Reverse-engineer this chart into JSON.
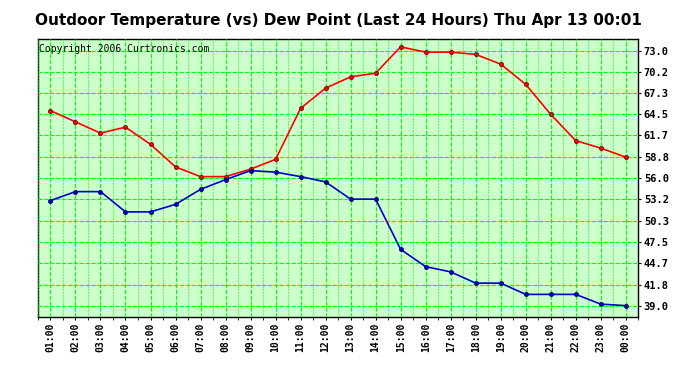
{
  "title": "Outdoor Temperature (vs) Dew Point (Last 24 Hours) Thu Apr 13 00:01",
  "copyright": "Copyright 2006 Curtronics.com",
  "x_labels": [
    "01:00",
    "02:00",
    "03:00",
    "04:00",
    "05:00",
    "06:00",
    "07:00",
    "08:00",
    "09:00",
    "10:00",
    "11:00",
    "12:00",
    "13:00",
    "14:00",
    "15:00",
    "16:00",
    "17:00",
    "18:00",
    "19:00",
    "20:00",
    "21:00",
    "22:00",
    "23:00",
    "00:00"
  ],
  "temp_red": [
    65.0,
    63.5,
    62.0,
    62.8,
    60.5,
    57.5,
    56.2,
    56.2,
    57.2,
    58.5,
    65.3,
    68.0,
    69.5,
    70.0,
    73.5,
    72.8,
    72.8,
    72.5,
    71.2,
    68.5,
    64.5,
    61.0,
    60.0,
    58.8
  ],
  "dew_blue": [
    53.0,
    54.2,
    54.2,
    51.5,
    51.5,
    52.5,
    54.5,
    55.8,
    57.0,
    56.8,
    56.2,
    55.5,
    53.2,
    53.2,
    46.5,
    44.2,
    43.5,
    42.0,
    42.0,
    40.5,
    40.5,
    40.5,
    39.2,
    39.0
  ],
  "y_ticks": [
    39.0,
    41.8,
    44.7,
    47.5,
    50.3,
    53.2,
    56.0,
    58.8,
    61.7,
    64.5,
    67.3,
    70.2,
    73.0
  ],
  "ylim": [
    37.5,
    74.5
  ],
  "bg_color": "#ccffcc",
  "fig_color": "#ffffff",
  "grid_color": "#00ff00",
  "line_red": "#ff0000",
  "line_blue": "#0000cc",
  "marker_dark_red": "#550000",
  "marker_dark_blue": "#000055",
  "title_fontsize": 11,
  "copyright_fontsize": 7,
  "tick_fontsize": 7.5,
  "xtick_fontsize": 7
}
